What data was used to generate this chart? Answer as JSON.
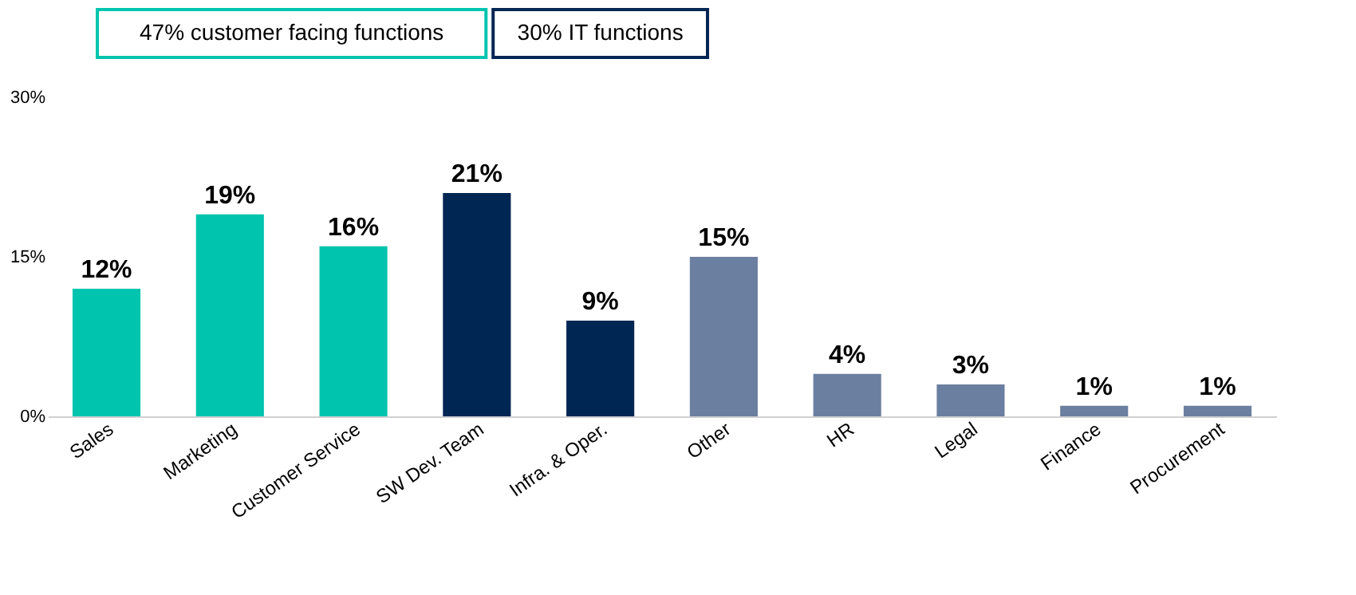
{
  "chart_data": {
    "type": "bar",
    "categories": [
      "Sales",
      "Marketing",
      "Customer Service",
      "SW Dev. Team",
      "Infra. & Oper.",
      "Other",
      "HR",
      "Legal",
      "Finance",
      "Procurement"
    ],
    "values": [
      12,
      19,
      16,
      21,
      9,
      15,
      4,
      3,
      1,
      1
    ],
    "value_labels": [
      "12%",
      "19%",
      "16%",
      "21%",
      "9%",
      "15%",
      "4%",
      "3%",
      "1%",
      "1%"
    ],
    "colors": [
      "#00c4ae",
      "#00c4ae",
      "#00c4ae",
      "#002654",
      "#002654",
      "#6b7fa0",
      "#6b7fa0",
      "#6b7fa0",
      "#6b7fa0",
      "#6b7fa0"
    ],
    "ylim": [
      0,
      30
    ],
    "yticks": [
      {
        "value": 0,
        "label": "0%"
      },
      {
        "value": 15,
        "label": "15%"
      },
      {
        "value": 30,
        "label": "30%"
      }
    ],
    "grid": false,
    "annotations": [
      "47% customer facing functions",
      "30% IT functions"
    ]
  }
}
